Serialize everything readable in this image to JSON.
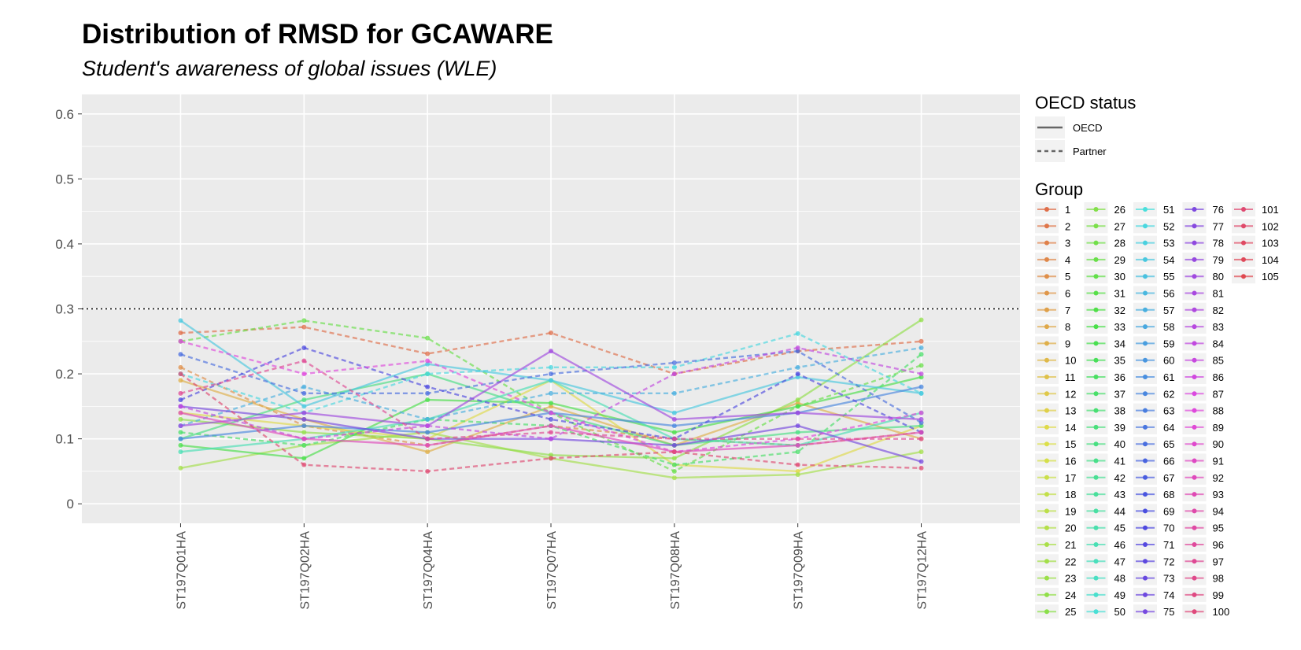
{
  "chart_data": {
    "type": "line",
    "title": "Distribution of RMSD for GCAWARE",
    "subtitle": "Student's awareness of global issues (WLE)",
    "xlabel": "",
    "ylabel": "",
    "categories": [
      "ST197Q01HA",
      "ST197Q02HA",
      "ST197Q04HA",
      "ST197Q07HA",
      "ST197Q08HA",
      "ST197Q09HA",
      "ST197Q12HA"
    ],
    "ylim": [
      -0.03,
      0.63
    ],
    "yticks": [
      "0",
      "0.1",
      "0.2",
      "0.3",
      "0.4",
      "0.5",
      "0.6"
    ],
    "ytick_values": [
      0,
      0.1,
      0.2,
      0.3,
      0.4,
      0.5,
      0.6
    ],
    "reference_line": {
      "y": 0.3,
      "style": "dotted"
    },
    "grid": true,
    "background": "#ebebeb",
    "legend_position": "right",
    "legend_oecd": {
      "title": "OECD status",
      "items": [
        {
          "label": "OECD",
          "linetype": "solid"
        },
        {
          "label": "Partner",
          "linetype": "dashed"
        }
      ]
    },
    "legend_group": {
      "title": "Group",
      "labels": [
        "1",
        "2",
        "3",
        "4",
        "5",
        "6",
        "7",
        "8",
        "9",
        "10",
        "11",
        "12",
        "13",
        "14",
        "15",
        "16",
        "17",
        "18",
        "19",
        "20",
        "21",
        "22",
        "23",
        "24",
        "25",
        "26",
        "27",
        "28",
        "29",
        "30",
        "31",
        "32",
        "33",
        "34",
        "35",
        "36",
        "37",
        "38",
        "39",
        "40",
        "41",
        "42",
        "43",
        "44",
        "45",
        "46",
        "47",
        "48",
        "49",
        "50",
        "51",
        "52",
        "53",
        "54",
        "55",
        "56",
        "57",
        "58",
        "59",
        "60",
        "61",
        "62",
        "63",
        "64",
        "65",
        "66",
        "67",
        "68",
        "69",
        "70",
        "71",
        "72",
        "73",
        "74",
        "75",
        "76",
        "77",
        "78",
        "79",
        "80",
        "81",
        "82",
        "83",
        "84",
        "85",
        "86",
        "87",
        "88",
        "89",
        "90",
        "91",
        "92",
        "93",
        "94",
        "95",
        "96",
        "97",
        "98",
        "99",
        "100",
        "101",
        "102",
        "103",
        "104",
        "105"
      ]
    },
    "series": [
      {
        "name": "1",
        "status": "Partner",
        "values": [
          0.263,
          0.272,
          0.231,
          0.263,
          0.2,
          0.235,
          0.25
        ]
      },
      {
        "name": "5",
        "status": "Partner",
        "values": [
          0.21,
          0.12,
          0.09,
          0.12,
          0.1,
          0.09,
          0.11
        ]
      },
      {
        "name": "9",
        "status": "OECD",
        "values": [
          0.19,
          0.13,
          0.08,
          0.15,
          0.09,
          0.155,
          0.1
        ]
      },
      {
        "name": "14",
        "status": "OECD",
        "values": [
          0.14,
          0.12,
          0.1,
          0.19,
          0.06,
          0.05,
          0.12
        ]
      },
      {
        "name": "22",
        "status": "OECD",
        "values": [
          0.055,
          0.09,
          0.11,
          0.07,
          0.04,
          0.045,
          0.08
        ]
      },
      {
        "name": "24",
        "status": "OECD",
        "values": [
          0.13,
          0.11,
          0.1,
          0.075,
          0.07,
          0.16,
          0.283
        ]
      },
      {
        "name": "29",
        "status": "Partner",
        "values": [
          0.25,
          0.282,
          0.255,
          0.14,
          0.05,
          0.15,
          0.213
        ]
      },
      {
        "name": "33",
        "status": "OECD",
        "values": [
          0.09,
          0.07,
          0.16,
          0.155,
          0.11,
          0.15,
          0.195
        ]
      },
      {
        "name": "37",
        "status": "Partner",
        "values": [
          0.11,
          0.09,
          0.13,
          0.12,
          0.06,
          0.08,
          0.23
        ]
      },
      {
        "name": "40",
        "status": "OECD",
        "values": [
          0.1,
          0.16,
          0.2,
          0.14,
          0.09,
          0.11,
          0.12
        ]
      },
      {
        "name": "46",
        "status": "OECD",
        "values": [
          0.08,
          0.1,
          0.13,
          0.19,
          0.1,
          0.09,
          0.14
        ]
      },
      {
        "name": "52",
        "status": "Partner",
        "values": [
          0.2,
          0.14,
          0.2,
          0.21,
          0.21,
          0.262,
          0.17
        ]
      },
      {
        "name": "54",
        "status": "OECD",
        "values": [
          0.282,
          0.15,
          0.215,
          0.19,
          0.14,
          0.195,
          0.17
        ]
      },
      {
        "name": "57",
        "status": "Partner",
        "values": [
          0.12,
          0.18,
          0.13,
          0.17,
          0.17,
          0.21,
          0.24
        ]
      },
      {
        "name": "62",
        "status": "OECD",
        "values": [
          0.1,
          0.12,
          0.11,
          0.14,
          0.12,
          0.14,
          0.18
        ]
      },
      {
        "name": "65",
        "status": "Partner",
        "values": [
          0.23,
          0.17,
          0.17,
          0.2,
          0.217,
          0.235,
          0.125
        ]
      },
      {
        "name": "70",
        "status": "Partner",
        "values": [
          0.16,
          0.24,
          0.18,
          0.13,
          0.1,
          0.2,
          0.11
        ]
      },
      {
        "name": "75",
        "status": "OECD",
        "values": [
          0.15,
          0.13,
          0.1,
          0.1,
          0.09,
          0.12,
          0.065
        ]
      },
      {
        "name": "80",
        "status": "OECD",
        "values": [
          0.12,
          0.14,
          0.12,
          0.235,
          0.13,
          0.14,
          0.13
        ]
      },
      {
        "name": "84",
        "status": "Partner",
        "values": [
          0.15,
          0.1,
          0.12,
          0.1,
          0.2,
          0.24,
          0.2
        ]
      },
      {
        "name": "88",
        "status": "Partner",
        "values": [
          0.25,
          0.2,
          0.22,
          0.14,
          0.08,
          0.1,
          0.14
        ]
      },
      {
        "name": "92",
        "status": "OECD",
        "values": [
          0.14,
          0.1,
          0.09,
          0.12,
          0.08,
          0.09,
          0.11
        ]
      },
      {
        "name": "97",
        "status": "Partner",
        "values": [
          0.17,
          0.22,
          0.1,
          0.11,
          0.1,
          0.1,
          0.1
        ]
      },
      {
        "name": "101",
        "status": "Partner",
        "values": [
          0.2,
          0.06,
          0.05,
          0.07,
          0.08,
          0.06,
          0.055
        ]
      }
    ]
  }
}
